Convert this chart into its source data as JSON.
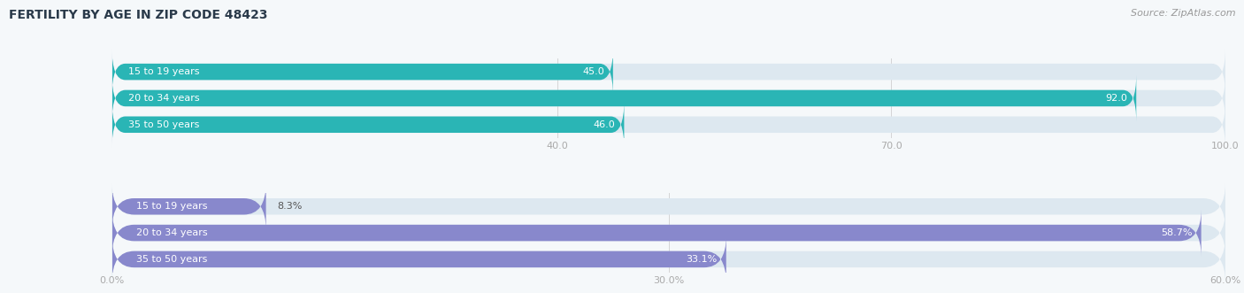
{
  "title": "Female Fertility by Age in Zip Code 48423",
  "title_display": "FERTILITY BY AGE IN ZIP CODE 48423",
  "source": "Source: ZipAtlas.com",
  "top_chart": {
    "categories": [
      "15 to 19 years",
      "20 to 34 years",
      "35 to 50 years"
    ],
    "values": [
      45.0,
      92.0,
      46.0
    ],
    "value_labels": [
      "45.0",
      "92.0",
      "46.0"
    ],
    "xlim": [
      0,
      100
    ],
    "xticks": [
      40.0,
      70.0,
      100.0
    ],
    "xtick_labels": [
      "40.0",
      "70.0",
      "100.0"
    ],
    "bar_color": "#2ab5b5",
    "bar_bg": "#dde8f0"
  },
  "bottom_chart": {
    "categories": [
      "15 to 19 years",
      "20 to 34 years",
      "35 to 50 years"
    ],
    "values": [
      8.3,
      58.7,
      33.1
    ],
    "value_labels": [
      "8.3%",
      "58.7%",
      "33.1%"
    ],
    "xlim": [
      0,
      60
    ],
    "xticks": [
      0.0,
      30.0,
      60.0
    ],
    "xtick_labels": [
      "0.0%",
      "30.0%",
      "60.0%"
    ],
    "bar_color": "#8888cc",
    "bar_bg": "#dde8f0"
  },
  "label_fontsize": 8,
  "value_fontsize": 8,
  "tick_fontsize": 8,
  "title_fontsize": 10,
  "source_fontsize": 8,
  "bar_height": 0.62,
  "fig_bg": "#f5f8fa"
}
